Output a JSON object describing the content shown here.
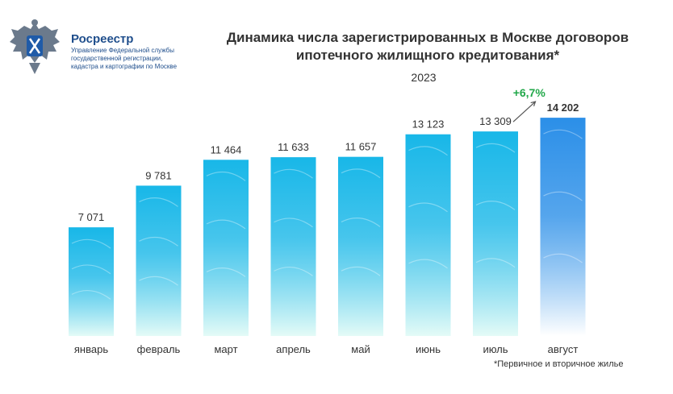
{
  "brand": {
    "name": "Росреестр",
    "subtitle_lines": [
      "Управление Федеральной службы",
      "государственной регистрации,",
      "кадастра и картографии по Москве"
    ]
  },
  "title_lines": [
    "Динамика числа зарегистрированных в Москве договоров",
    "ипотечного жилищного кредитования*"
  ],
  "year": "2023",
  "footnote": "*Первичное и вторичное жилье",
  "colors": {
    "bar_top": "#18b7e8",
    "bar_bottom": "#e4fbf7",
    "highlight_top": "#2b8fe8",
    "highlight_bottom": "#ffffff",
    "growth": "#22a84a",
    "text": "#333333"
  },
  "chart_data": {
    "type": "bar",
    "categories": [
      "январь",
      "февраль",
      "март",
      "апрель",
      "май",
      "июнь",
      "июль",
      "август"
    ],
    "values": [
      7071,
      9781,
      11464,
      11633,
      11657,
      13123,
      13309,
      14202
    ],
    "value_labels": [
      "7 071",
      "9 781",
      "11 464",
      "11 633",
      "11 657",
      "13 123",
      "13 309",
      "14 202"
    ],
    "highlight_index": 7,
    "annotation": {
      "text": "+6,7%",
      "from_index": 6,
      "to_index": 7
    },
    "ylim": [
      0,
      16200
    ],
    "grid": false,
    "title": "Динамика числа зарегистрированных в Москве договоров ипотечного жилищного кредитования*",
    "subtitle": "2023"
  }
}
